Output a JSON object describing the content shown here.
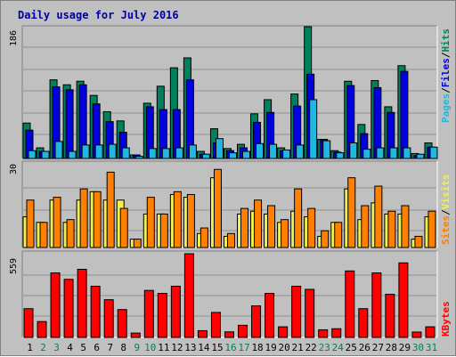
{
  "chart_data": {
    "type": "bar",
    "title": "Daily usage for July 2016",
    "days": [
      1,
      2,
      3,
      4,
      5,
      6,
      7,
      8,
      9,
      10,
      11,
      12,
      13,
      14,
      15,
      16,
      17,
      18,
      19,
      20,
      21,
      22,
      23,
      24,
      25,
      26,
      27,
      28,
      29,
      30,
      31
    ],
    "weekend_days": [
      2,
      3,
      9,
      10,
      16,
      17,
      23,
      24,
      30,
      31
    ],
    "panels": [
      {
        "max_label": "186",
        "max": 186,
        "series": [
          {
            "name": "Hits",
            "color": "#00805c",
            "values": [
              50,
              15,
              111,
              104,
              109,
              89,
              66,
              53,
              5,
              78,
              102,
              128,
              142,
              10,
              42,
              14,
              20,
              63,
              83,
              15,
              91,
              186,
              27,
              11,
              109,
              48,
              110,
              73,
              131,
              7,
              22
            ]
          },
          {
            "name": "Files",
            "color": "#0000e0",
            "values": [
              40,
              10,
              101,
              97,
              104,
              77,
              52,
              37,
              5,
              73,
              69,
              69,
              111,
              6,
              22,
              11,
              15,
              51,
              65,
              11,
              74,
              119,
              27,
              9,
              103,
              35,
              100,
              65,
              123,
              4,
              16
            ]
          },
          {
            "name": "Pages",
            "color": "#20b8e0",
            "values": [
              11,
              10,
              24,
              10,
              19,
              19,
              20,
              15,
              3,
              14,
              14,
              15,
              19,
              6,
              28,
              8,
              10,
              21,
              20,
              12,
              19,
              83,
              25,
              8,
              22,
              13,
              15,
              15,
              15,
              6,
              16
            ]
          }
        ]
      },
      {
        "max_label": "30",
        "max": 30,
        "series": [
          {
            "name": "Visits",
            "color": "#f0f050",
            "values": [
              11,
              9,
              17,
              9,
              17,
              20,
              17,
              17,
              3,
              12,
              12,
              19,
              18,
              5,
              25,
              4,
              12,
              13,
              12,
              9,
              13,
              11,
              4,
              9,
              21,
              10,
              16,
              12,
              12,
              3,
              11
            ]
          },
          {
            "name": "Sites",
            "color": "#ff8000",
            "values": [
              17,
              9,
              18,
              10,
              21,
              20,
              27,
              14,
              3,
              18,
              12,
              20,
              19,
              7,
              28,
              5,
              14,
              17,
              15,
              10,
              21,
              14,
              6,
              9,
              25,
              15,
              22,
              13,
              15,
              4,
              13
            ]
          }
        ]
      },
      {
        "max_label": "559",
        "max": 559,
        "series": [
          {
            "name": "KBytes",
            "color": "#ff0000",
            "values": [
              192,
              106,
              431,
              388,
              455,
              342,
              252,
              186,
              29,
              314,
              294,
              342,
              559,
              45,
              167,
              37,
              81,
              211,
              294,
              71,
              342,
              321,
              51,
              58,
              444,
              192,
              431,
              288,
              498,
              36,
              71
            ]
          }
        ]
      }
    ]
  }
}
